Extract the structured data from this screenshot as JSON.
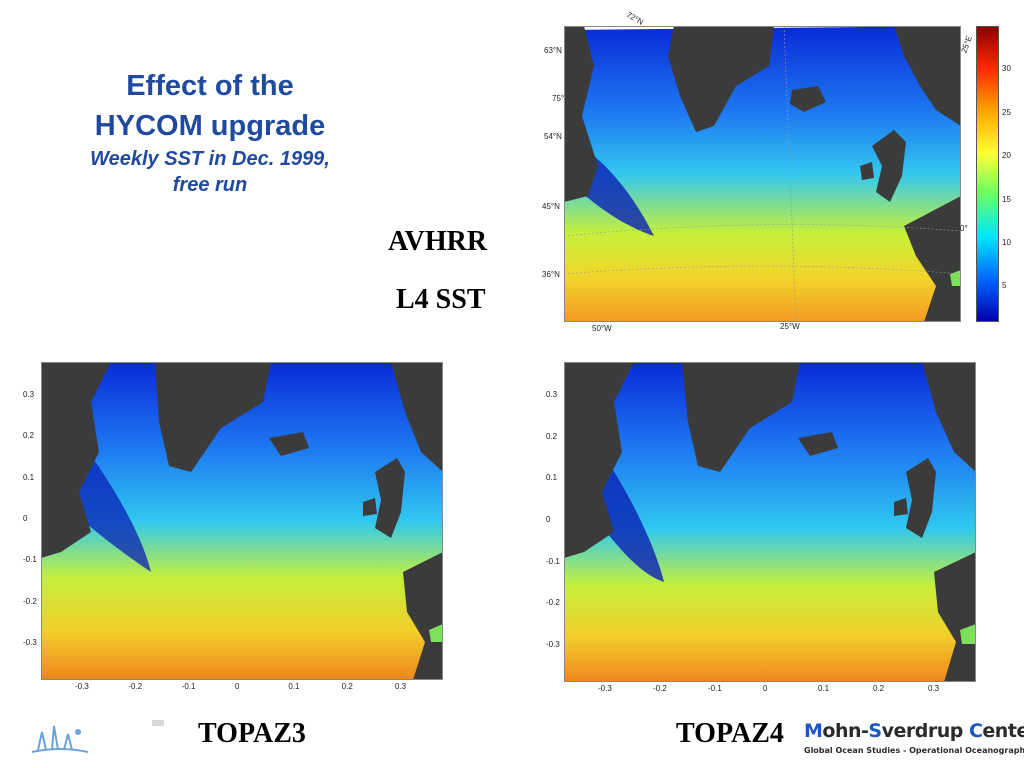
{
  "title": {
    "line1": "Effect of the",
    "line2": "HYCOM upgrade",
    "subtitle_line1": "Weekly SST in Dec. 1999,",
    "subtitle_line2": "free run"
  },
  "labels": {
    "avhrr": "AVHRR",
    "l4sst": "L4 SST",
    "topaz3": "TOPAZ3",
    "topaz4": "TOPAZ4"
  },
  "observation_map": {
    "lat_labels": [
      "63°N",
      "75°",
      "54°N",
      "45°N",
      "36°N"
    ],
    "lon_labels": [
      "50°W",
      "25°W"
    ],
    "corner_labels": [
      "72°N",
      "25°E",
      "0°"
    ]
  },
  "colorbar": {
    "ticks": [
      "30",
      "25",
      "20",
      "15",
      "10",
      "5"
    ],
    "colors": [
      "#8b0000",
      "#ff2a00",
      "#ffa500",
      "#ffff33",
      "#66ff66",
      "#00e5ff",
      "#0066ff",
      "#0000aa"
    ]
  },
  "model_axes": {
    "y_ticks": [
      "0.3",
      "0.2",
      "0.1",
      "0",
      "-0.1",
      "-0.2",
      "-0.3"
    ],
    "x_ticks": [
      "-0.3",
      "-0.2",
      "-0.1",
      "0",
      "0.1",
      "0.2",
      "0.3"
    ]
  },
  "footer": {
    "org_part1": "M",
    "org_part2": "ohn-",
    "org_part3": "S",
    "org_part4": "verdrup ",
    "org_part5": "C",
    "org_part6": "enter",
    "tagline": "Global Ocean Studies - Operational Oceanography"
  }
}
